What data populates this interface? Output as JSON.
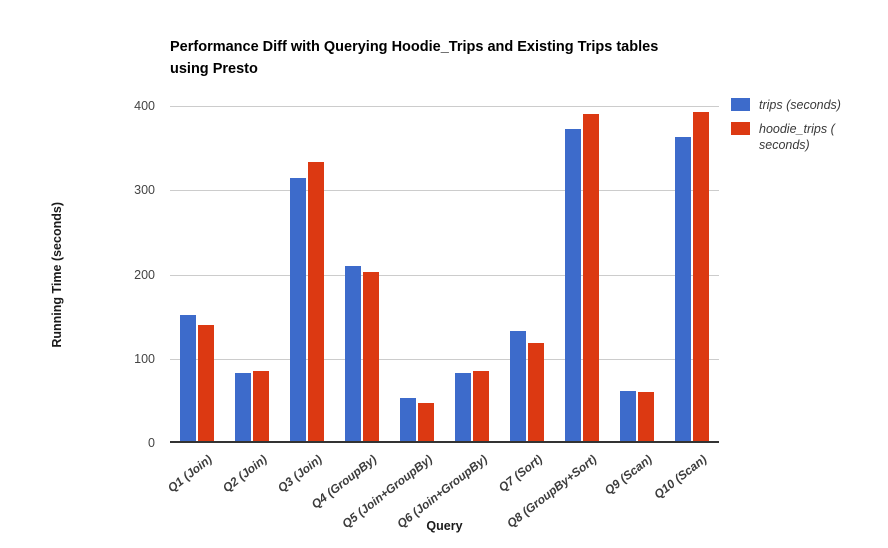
{
  "title_lines": [
    "Performance Diff with Querying Hoodie_Trips and Existing Trips tables",
    "using Presto"
  ],
  "axes": {
    "y_title": "Running Time (seconds)",
    "x_title": "Query",
    "y_ticks": [
      400,
      300,
      200,
      100,
      0
    ]
  },
  "legend": {
    "position": "top-right",
    "items": [
      {
        "label": "trips (seconds)",
        "lines": [
          "trips (seconds)"
        ],
        "color": "#3D6BCB"
      },
      {
        "label": "hoodie_trips (seconds)",
        "lines": [
          "hoodie_trips (",
          "seconds)"
        ],
        "color": "#DC3912"
      }
    ]
  },
  "chart_data": {
    "type": "bar",
    "title": "Performance Diff with Querying Hoodie_Trips and Existing Trips tables using Presto",
    "categories": [
      "Q1 (Join)",
      "Q2 (Join)",
      "Q3 (Join)",
      "Q4 (GroupBy)",
      "Q5 (Join+GroupBy)",
      "Q6 (Join+GroupBy)",
      "Q7 (Sort)",
      "Q8 (GroupBy+Sort)",
      "Q9 (Scan)",
      "Q10 (Scan)"
    ],
    "series": [
      {
        "name": "trips (seconds)",
        "color": "#3D6BCB",
        "values": [
          150,
          81,
          314,
          209,
          51,
          81,
          131,
          372,
          60,
          363
        ]
      },
      {
        "name": "hoodie_trips (seconds)",
        "color": "#DC3912",
        "values": [
          138,
          84,
          333,
          202,
          45,
          84,
          117,
          391,
          59,
          393
        ]
      }
    ],
    "xlabel": "Query",
    "ylabel": "Running Time (seconds)",
    "ylim": [
      0,
      400
    ],
    "y_ticks": [
      400,
      300,
      200,
      100,
      0
    ],
    "grid": true,
    "legend_position": "top-right",
    "colors": {
      "grid": "#cccccc",
      "axis_line": "#333333",
      "tick_text": "#444444"
    }
  }
}
